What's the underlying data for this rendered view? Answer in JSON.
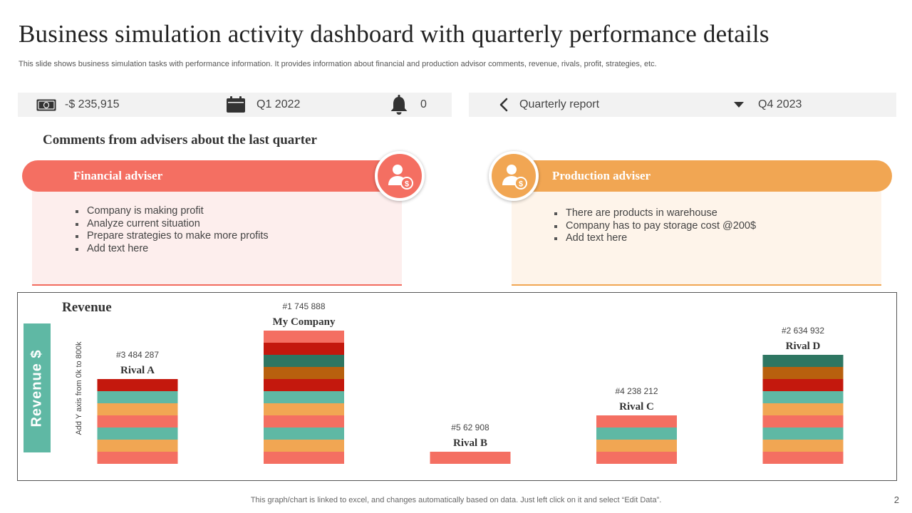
{
  "header": {
    "title": "Business simulation activity dashboard with quarterly performance details",
    "subtitle": "This slide shows business simulation tasks with performance information. It provides information about financial and production advisor comments, revenue, rivals, profit, strategies, etc."
  },
  "status_bar": {
    "balance": "-$ 235,915",
    "quarter": "Q1 2022",
    "notifications": "0",
    "balance_icon": "money-icon",
    "calendar_icon": "calendar-icon",
    "bell_icon": "bell-icon"
  },
  "report_bar": {
    "label": "Quarterly report",
    "period": "Q4 2023",
    "back_icon": "chevron-left-icon",
    "dropdown_icon": "caret-down-icon"
  },
  "comments": {
    "section_title": "Comments from advisers about the last quarter",
    "financial": {
      "label": "Financial adviser",
      "items": [
        "Company is making profit",
        "Analyze current situation",
        "Prepare strategies to make more profits",
        "Add text here"
      ]
    },
    "production": {
      "label": "Production adviser",
      "items": [
        "There are products in warehouse",
        "Company has to pay storage cost @200$",
        "Add text here"
      ]
    }
  },
  "colors": {
    "coral": "#f46f62",
    "orange": "#f1a653",
    "teal": "#5fb8a4",
    "red": "#c4180d",
    "dark_orange": "#b8600e",
    "dark_teal": "#2e7662"
  },
  "chart_data": {
    "type": "bar",
    "title": "Revenue",
    "ylabel": "Revenue $",
    "axis_note": "Add Y axis from 0k to 800k",
    "ylim": [
      0,
      800000
    ],
    "categories": [
      "Rival A",
      "My Company",
      "Rival B",
      "Rival C",
      "Rival D"
    ],
    "values": [
      484287,
      745888,
      62908,
      238212,
      634932
    ],
    "ranks": [
      "#3",
      "#1",
      "#5",
      "#4",
      "#2"
    ],
    "value_labels": [
      "484 287",
      "745 888",
      "62 908",
      "238 212",
      "634 932"
    ],
    "segment_colors": [
      "coral",
      "orange",
      "teal",
      "coral",
      "orange",
      "teal",
      "red",
      "dark_orange",
      "dark_teal",
      "red"
    ]
  },
  "footer": {
    "note": "This graph/chart is linked to excel, and changes automatically based on data. Just left click on it and select “Edit Data”.",
    "page": "2"
  }
}
